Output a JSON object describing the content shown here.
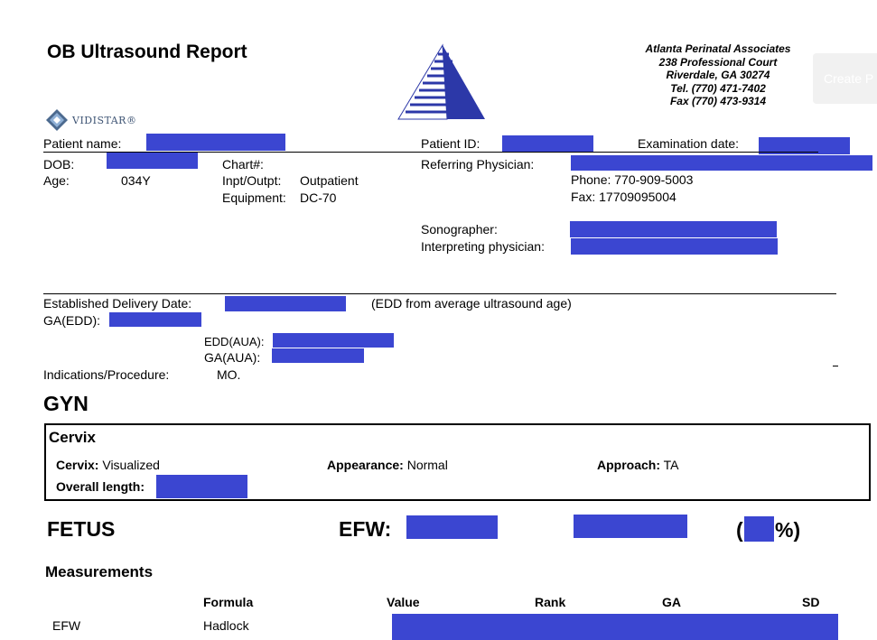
{
  "report": {
    "title": "OB Ultrasound Report",
    "vidistar_logo": "VIDISTAR®",
    "clinic": {
      "name": "Atlanta Perinatal Associates",
      "street": "238 Professional Court",
      "city": "Riverdale, GA 30274",
      "tel": "Tel. (770) 471-7402",
      "fax": "Fax (770) 473-9314"
    },
    "create_button": "Create P"
  },
  "patient": {
    "name_label": "Patient name:",
    "id_label": "Patient ID:",
    "exam_date_label": "Examination date:",
    "dob_label": "DOB:",
    "age_label": "Age:",
    "age_value": "034Y",
    "chart_label": "Chart#:",
    "inpt_label": "Inpt/Outpt:",
    "inpt_value": "Outpatient",
    "equipment_label": "Equipment:",
    "equipment_value": "DC-70",
    "referring_label": "Referring Physician:",
    "phone": "Phone: 770-909-5003",
    "fax": "Fax: 17709095004",
    "sonographer_label": "Sonographer:",
    "interpreting_label": "Interpreting physician:"
  },
  "delivery": {
    "edd_label": "Established Delivery Date:",
    "edd_note": "(EDD from average ultrasound age)",
    "ga_edd_label": "GA(EDD):",
    "edd_aua_label": "EDD(AUA):",
    "ga_aua_label": "GA(AUA):",
    "indications_label": "Indications/Procedure:",
    "indications_value": "MO."
  },
  "gyn": {
    "heading": "GYN",
    "cervix": {
      "title": "Cervix",
      "cervix_label": "Cervix:",
      "cervix_value": "Visualized",
      "appearance_label": "Appearance:",
      "appearance_value": "Normal",
      "approach_label": "Approach:",
      "approach_value": "TA",
      "length_label": "Overall length:"
    }
  },
  "fetus": {
    "heading": "FETUS",
    "efw_label": "EFW:",
    "paren_open": "(",
    "pct_close": "%)"
  },
  "measurements": {
    "heading": "Measurements",
    "columns": [
      "Formula",
      "Value",
      "Rank",
      "GA",
      "SD"
    ],
    "rows": [
      {
        "name": "EFW",
        "formula": "Hadlock"
      }
    ]
  }
}
